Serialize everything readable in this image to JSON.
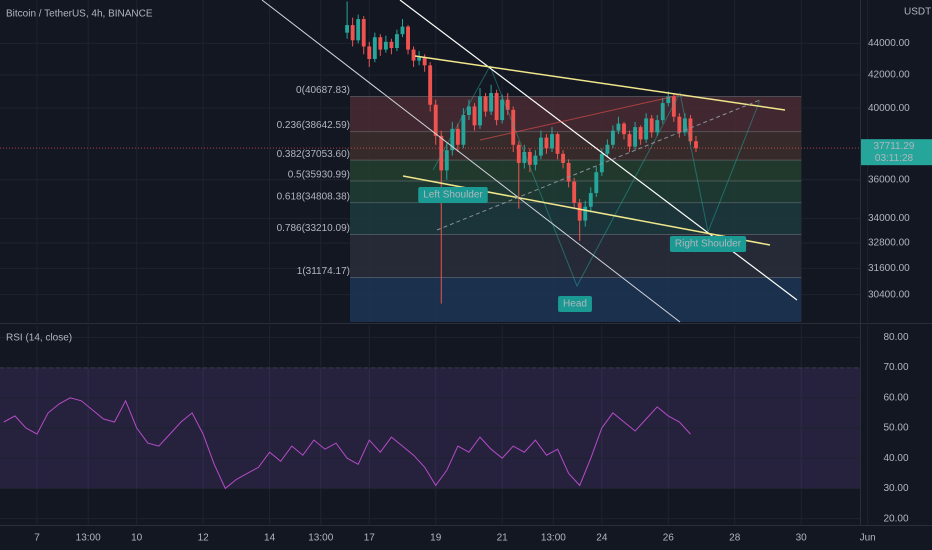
{
  "chart_data": [
    {
      "type": "candlestick",
      "title": "Bitcoin / TetherUS, 4h, BINANCE",
      "unit": "USDT",
      "up_color": "#26a69a",
      "down_color": "#ef5350",
      "log_scale": true,
      "grid": true,
      "x": [
        16.333,
        16.5,
        16.667,
        16.833,
        17,
        17.167,
        17.333,
        17.5,
        17.667,
        17.833,
        18,
        18.167,
        18.333,
        18.5,
        18.667,
        18.833,
        19,
        19.167,
        19.333,
        19.5,
        19.667,
        19.833,
        20,
        20.167,
        20.333,
        20.5,
        20.667,
        20.833,
        21,
        21.167,
        21.333,
        21.5,
        21.667,
        21.833,
        22,
        22.167,
        22.333,
        22.5,
        22.667,
        22.833,
        23,
        23.167,
        23.333,
        23.5,
        23.667,
        23.833,
        24,
        24.167,
        24.333,
        24.5,
        24.667,
        24.833,
        25,
        25.167,
        25.333,
        25.5,
        25.667,
        25.833,
        26,
        26.167,
        26.333,
        26.5,
        26.667,
        26.833
      ],
      "open": [
        44700,
        45200,
        44200,
        45600,
        43800,
        43000,
        44400,
        43600,
        44100,
        43700,
        44600,
        45100,
        43600,
        42900,
        43100,
        42600,
        40200,
        38400,
        36500,
        37600,
        38800,
        37900,
        39600,
        40100,
        39000,
        40700,
        39800,
        40900,
        39300,
        40500,
        39900,
        37900,
        36900,
        37500,
        36800,
        37300,
        38300,
        37700,
        38500,
        37400,
        36900,
        35900,
        34800,
        33900,
        34600,
        35300,
        36400,
        37400,
        37900,
        38700,
        39100,
        38500,
        37800,
        38900,
        38200,
        39400,
        38600,
        39300,
        40300,
        40700,
        39500,
        38600,
        39400,
        38100
      ],
      "high": [
        46800,
        45700,
        45900,
        45800,
        44100,
        44700,
        44600,
        44500,
        44300,
        44900,
        45600,
        45200,
        43800,
        43500,
        43300,
        42800,
        40500,
        38700,
        38000,
        39200,
        39100,
        40000,
        40500,
        40300,
        41200,
        40900,
        41400,
        41100,
        40800,
        40900,
        40100,
        38100,
        37900,
        37700,
        37600,
        38700,
        38500,
        38900,
        38600,
        37600,
        37100,
        36100,
        35000,
        34900,
        35600,
        36700,
        37700,
        38200,
        39000,
        39500,
        39200,
        38700,
        39200,
        39000,
        39700,
        39600,
        39600,
        40600,
        41000,
        40900,
        39700,
        39700,
        39600,
        38400
      ],
      "low": [
        44300,
        43800,
        44000,
        43300,
        42500,
        42800,
        43200,
        43400,
        43300,
        43500,
        44400,
        43300,
        42500,
        42600,
        42200,
        39800,
        37900,
        30000,
        36000,
        37300,
        37500,
        37700,
        39300,
        38700,
        38800,
        39500,
        39600,
        39000,
        39100,
        39600,
        37500,
        34500,
        36600,
        36400,
        36500,
        37100,
        37400,
        37500,
        37100,
        36600,
        35600,
        34500,
        32900,
        33600,
        34300,
        35100,
        36200,
        37200,
        37700,
        38500,
        38200,
        37500,
        37600,
        37900,
        38000,
        38300,
        38400,
        39100,
        40100,
        39200,
        38300,
        38400,
        37900,
        37500
      ],
      "close": [
        45200,
        44200,
        45600,
        43800,
        43000,
        44400,
        43600,
        44100,
        43700,
        44600,
        45100,
        43600,
        42900,
        43100,
        42600,
        40200,
        38400,
        36500,
        37600,
        38800,
        37900,
        39600,
        40100,
        39000,
        40700,
        39800,
        40900,
        39300,
        40500,
        39900,
        37900,
        36900,
        37500,
        36800,
        37300,
        38300,
        37700,
        38500,
        37400,
        36900,
        35900,
        34800,
        33900,
        34600,
        35300,
        36400,
        37400,
        37900,
        38700,
        39100,
        38500,
        37800,
        38900,
        38200,
        39400,
        38600,
        39300,
        40300,
        40700,
        39500,
        38600,
        39400,
        38100,
        37711.29
      ],
      "countdown": "03:11:28",
      "xlim": [
        5.886,
        31.77
      ],
      "xticks": [
        7,
        {
          "value": 8.54,
          "label": "13:00"
        },
        10,
        12,
        14,
        {
          "value": 15.54,
          "label": "13:00"
        },
        17,
        19,
        21,
        {
          "value": 22.54,
          "label": "13:00"
        },
        24,
        26,
        28,
        30,
        {
          "value": 32,
          "label": "Jun"
        }
      ],
      "ylim": [
        29200,
        46900
      ],
      "yticks": [
        {
          "value": 44000,
          "label": "44000.00"
        },
        {
          "value": 42000,
          "label": "42000.00"
        },
        {
          "value": 40000,
          "label": "40000.00"
        },
        {
          "value": 36000,
          "label": "36000.00"
        },
        {
          "value": 34000,
          "label": "34000.00"
        },
        {
          "value": 32800,
          "label": "32800.00"
        },
        {
          "value": 31600,
          "label": "31600.00"
        },
        {
          "value": 30400,
          "label": "30400.00"
        }
      ],
      "fib": {
        "prices": [
          40687.83,
          38642.59,
          37053.6,
          35930.99,
          34808.38,
          33210.09,
          31174.17
        ],
        "labels": [
          "0(40687.83)",
          "0.236(38642.59)",
          "0.382(37053.60)",
          "0.5(35930.99)",
          "0.618(34808.38)",
          "0.786(33210.09)",
          "1(31174.17)"
        ],
        "colors": [
          "#4a2a31",
          "#3d2f2c",
          "#24402f",
          "#1f3e33",
          "#1c3a3d",
          "#2a2e39",
          "#1c3554"
        ],
        "xlim": [
          16.42,
          30
        ]
      },
      "annotations": [
        "Left Shoulder",
        "Head",
        "Right Shoulder"
      ]
    },
    {
      "type": "line",
      "title": "RSI (14, close)",
      "color": "#b54bc6",
      "band_color": "#7e57c2",
      "x": [
        6,
        6.333,
        6.667,
        7,
        7.333,
        7.667,
        8,
        8.333,
        8.667,
        9,
        9.333,
        9.667,
        10,
        10.333,
        10.667,
        11,
        11.333,
        11.667,
        12,
        12.333,
        12.667,
        13,
        13.333,
        13.667,
        14,
        14.333,
        14.667,
        15,
        15.333,
        15.667,
        16,
        16.333,
        16.667,
        17,
        17.333,
        17.667,
        18,
        18.333,
        18.667,
        19,
        19.333,
        19.667,
        20,
        20.333,
        20.667,
        21,
        21.333,
        21.667,
        22,
        22.333,
        22.667,
        23,
        23.333,
        23.667,
        24,
        24.333,
        24.667,
        25,
        25.333,
        25.667,
        26,
        26.333,
        26.667
      ],
      "values": [
        52,
        54,
        50,
        48,
        55,
        58,
        60,
        59,
        56,
        53,
        52,
        59,
        50,
        45,
        44,
        48,
        52,
        55,
        48,
        38,
        30,
        33,
        35,
        37,
        42,
        39,
        44,
        41,
        46,
        43,
        45,
        40,
        38,
        46,
        42,
        47,
        44,
        41,
        37,
        31,
        36,
        44,
        42,
        47,
        43,
        40,
        44,
        42,
        46,
        41,
        43,
        35,
        31,
        40,
        50,
        55,
        52,
        49,
        53,
        57,
        54,
        52,
        48
      ],
      "band": [
        30,
        70
      ],
      "ylim": [
        17.9,
        84.1
      ],
      "yticks": [
        {
          "value": 80,
          "label": "80.00"
        },
        {
          "value": 70,
          "label": "70.00"
        },
        {
          "value": 60,
          "label": "60.00"
        },
        {
          "value": 50,
          "label": "50.00"
        },
        {
          "value": 40,
          "label": "40.00"
        },
        {
          "value": 30,
          "label": "30.00"
        },
        {
          "value": 20,
          "label": "20.00"
        }
      ]
    }
  ]
}
